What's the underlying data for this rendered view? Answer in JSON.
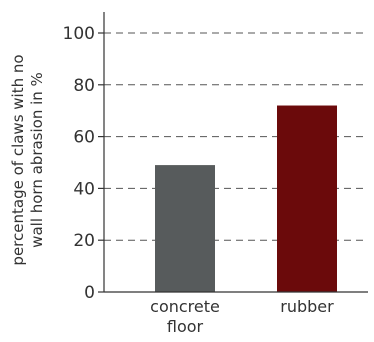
{
  "chart_data": {
    "type": "bar",
    "categories": [
      "concrete floor",
      "rubber"
    ],
    "category_lines": [
      [
        "concrete",
        "floor"
      ],
      [
        "rubber"
      ]
    ],
    "values": [
      49,
      72
    ],
    "colors": [
      "#575b5c",
      "#6b0a0b"
    ],
    "ylabel": "percentage of claws with no wall horn abrasion in %",
    "ylabel_lines": [
      "percentage of claws with no",
      "wall horn abrasion in %"
    ],
    "ylim": [
      0,
      100
    ],
    "yticks": [
      0,
      20,
      40,
      60,
      80,
      100
    ],
    "grid": "dashed horizontal"
  }
}
